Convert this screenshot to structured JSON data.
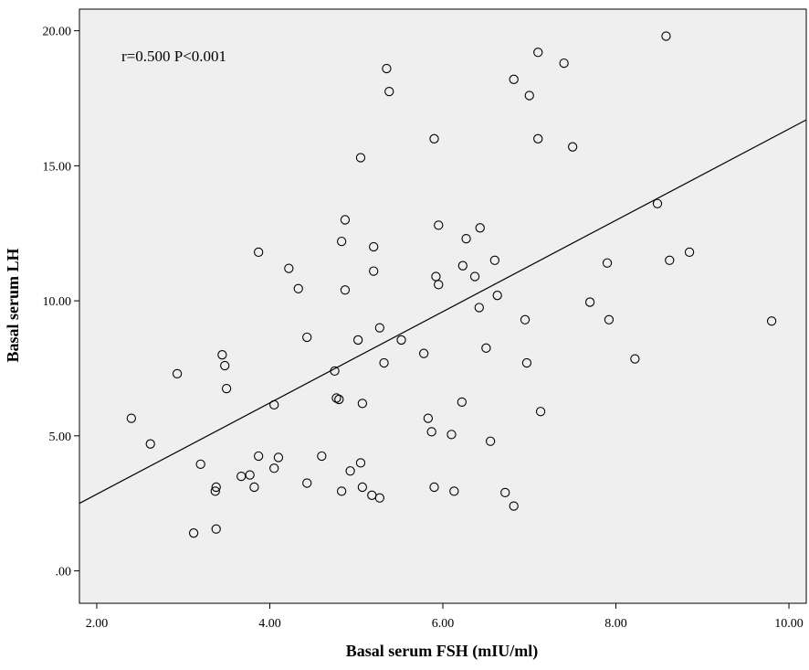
{
  "chart_data": {
    "type": "scatter",
    "xlabel": "Basal serum FSH (mIU/ml)",
    "ylabel": "Basal serum LH",
    "annotation": "r=0.500   P<0.001",
    "xlim": [
      1.8,
      10.2
    ],
    "ylim": [
      -1.2,
      20.8
    ],
    "xticks": [
      2.0,
      4.0,
      6.0,
      8.0,
      10.0
    ],
    "xtick_labels": [
      "2.00",
      "4.00",
      "6.00",
      "8.00",
      "10.00"
    ],
    "yticks": [
      0,
      5,
      10,
      15,
      20
    ],
    "ytick_labels": [
      ".00",
      "5.00",
      "10.00",
      "15.00",
      "20.00"
    ],
    "grid": false,
    "plot_background": "#efefef",
    "marker_style": "hollow circle",
    "fit_line": {
      "x": [
        1.8,
        10.2
      ],
      "y": [
        2.5,
        16.7
      ]
    },
    "points": [
      [
        2.4,
        5.65
      ],
      [
        2.62,
        4.7
      ],
      [
        2.93,
        7.3
      ],
      [
        3.12,
        1.4
      ],
      [
        3.2,
        3.95
      ],
      [
        3.37,
        2.95
      ],
      [
        3.38,
        3.1
      ],
      [
        3.38,
        1.55
      ],
      [
        3.45,
        8.0
      ],
      [
        3.48,
        7.6
      ],
      [
        3.5,
        6.75
      ],
      [
        3.67,
        3.5
      ],
      [
        3.77,
        3.55
      ],
      [
        3.82,
        3.1
      ],
      [
        3.87,
        4.25
      ],
      [
        3.87,
        11.8
      ],
      [
        4.05,
        3.8
      ],
      [
        4.05,
        6.15
      ],
      [
        4.1,
        4.2
      ],
      [
        4.22,
        11.2
      ],
      [
        4.33,
        10.45
      ],
      [
        4.43,
        8.65
      ],
      [
        4.43,
        3.25
      ],
      [
        4.6,
        4.25
      ],
      [
        4.75,
        7.4
      ],
      [
        4.77,
        6.4
      ],
      [
        4.8,
        6.35
      ],
      [
        4.83,
        2.95
      ],
      [
        4.83,
        12.2
      ],
      [
        4.87,
        13.0
      ],
      [
        4.87,
        10.4
      ],
      [
        4.93,
        3.7
      ],
      [
        5.02,
        8.55
      ],
      [
        5.05,
        15.3
      ],
      [
        5.05,
        4.0
      ],
      [
        5.07,
        6.2
      ],
      [
        5.07,
        3.1
      ],
      [
        5.18,
        2.8
      ],
      [
        5.2,
        11.1
      ],
      [
        5.2,
        12.0
      ],
      [
        5.27,
        9.0
      ],
      [
        5.27,
        2.7
      ],
      [
        5.32,
        7.7
      ],
      [
        5.35,
        18.6
      ],
      [
        5.38,
        17.75
      ],
      [
        5.52,
        8.55
      ],
      [
        5.78,
        8.05
      ],
      [
        5.83,
        5.65
      ],
      [
        5.87,
        5.15
      ],
      [
        5.9,
        16.0
      ],
      [
        5.9,
        3.1
      ],
      [
        5.92,
        10.9
      ],
      [
        5.95,
        10.6
      ],
      [
        5.95,
        12.8
      ],
      [
        6.1,
        5.05
      ],
      [
        6.13,
        2.95
      ],
      [
        6.22,
        6.25
      ],
      [
        6.23,
        11.3
      ],
      [
        6.27,
        12.3
      ],
      [
        6.37,
        10.9
      ],
      [
        6.42,
        9.75
      ],
      [
        6.43,
        12.7
      ],
      [
        6.5,
        8.25
      ],
      [
        6.55,
        4.8
      ],
      [
        6.6,
        11.5
      ],
      [
        6.63,
        10.2
      ],
      [
        6.72,
        2.9
      ],
      [
        6.82,
        2.4
      ],
      [
        6.82,
        18.2
      ],
      [
        6.95,
        9.3
      ],
      [
        6.97,
        7.7
      ],
      [
        7.0,
        17.6
      ],
      [
        7.1,
        19.2
      ],
      [
        7.1,
        16.0
      ],
      [
        7.13,
        5.9
      ],
      [
        7.4,
        18.8
      ],
      [
        7.5,
        15.7
      ],
      [
        7.7,
        9.95
      ],
      [
        7.9,
        11.4
      ],
      [
        7.92,
        9.3
      ],
      [
        8.22,
        7.85
      ],
      [
        8.48,
        13.6
      ],
      [
        8.58,
        19.8
      ],
      [
        8.62,
        11.5
      ],
      [
        8.85,
        11.8
      ],
      [
        9.8,
        9.25
      ]
    ]
  }
}
